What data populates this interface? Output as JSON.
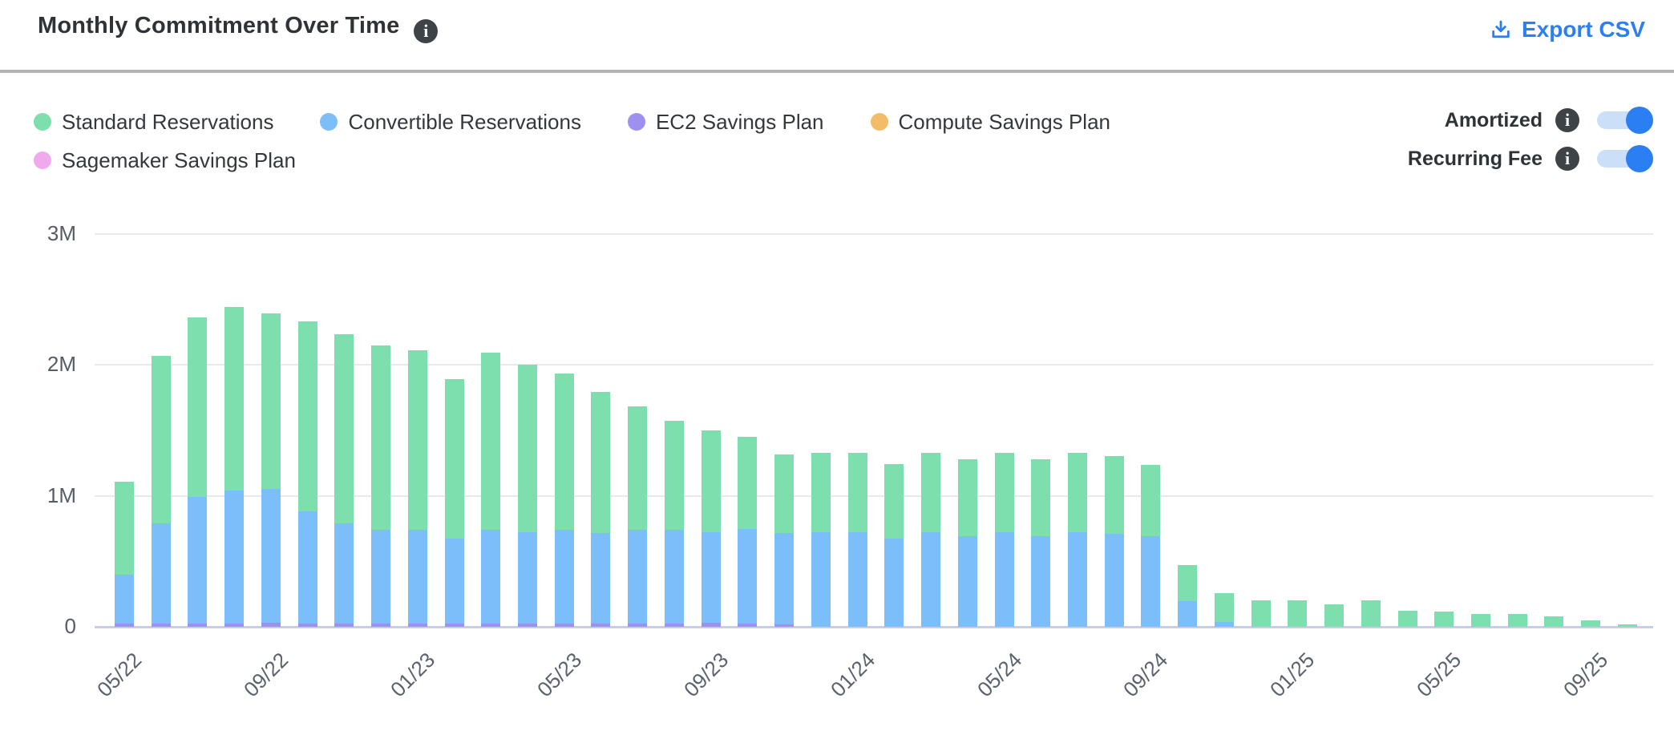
{
  "header": {
    "title": "Monthly Commitment Over Time",
    "title_info_icon": "info-icon",
    "export_label": "Export CSV"
  },
  "toggles": [
    {
      "label": "Amortized",
      "state": "on"
    },
    {
      "label": "Recurring Fee",
      "state": "on"
    }
  ],
  "colors": {
    "accent_blue": "#2b7ff2",
    "toggle_track": "#cbdff9",
    "info_badge_bg": "#3e4347",
    "divider": "#b3b3b3",
    "grid": "#e9e9ec",
    "axis_line": "#c8cee9",
    "axis_text": "#565d66",
    "standard": "#7cdfad",
    "convertible": "#7cbef9",
    "ec2": "#9d90ee",
    "compute": "#f5bc67",
    "sagemaker": "#f0a9ec"
  },
  "chart_data": {
    "type": "bar",
    "stacked": true,
    "title": "Monthly Commitment Over Time",
    "xlabel": "",
    "ylabel": "",
    "ylim": [
      0,
      3000000
    ],
    "ytick_labels": [
      "0",
      "1M",
      "2M",
      "3M"
    ],
    "ytick_values": [
      0,
      1000000,
      2000000,
      3000000
    ],
    "grid": "horizontal",
    "legend_position": "top-left",
    "x_tick_labels_shown": [
      "05/22",
      "09/22",
      "01/23",
      "05/23",
      "09/23",
      "01/24",
      "05/24",
      "09/24",
      "01/25",
      "05/25",
      "09/25"
    ],
    "x_tick_every": 4,
    "categories": [
      "05/22",
      "06/22",
      "07/22",
      "08/22",
      "09/22",
      "10/22",
      "11/22",
      "12/22",
      "01/23",
      "02/23",
      "03/23",
      "04/23",
      "05/23",
      "06/23",
      "07/23",
      "08/23",
      "09/23",
      "10/23",
      "11/23",
      "12/23",
      "01/24",
      "02/24",
      "03/24",
      "04/24",
      "05/24",
      "06/24",
      "07/24",
      "08/24",
      "09/24",
      "10/24",
      "11/24",
      "12/24",
      "01/25",
      "02/25",
      "03/25",
      "04/25",
      "05/25",
      "06/25",
      "07/25",
      "08/25",
      "09/25",
      "10/25"
    ],
    "value_unit": "M",
    "stack_order_bottom_to_top": [
      "EC2 Savings Plan",
      "Convertible Reservations",
      "Standard Reservations",
      "Compute Savings Plan",
      "Sagemaker Savings Plan"
    ],
    "series": [
      {
        "name": "Standard Reservations",
        "color": "#7cdfad",
        "values": [
          0.71,
          1.28,
          1.37,
          1.4,
          1.34,
          1.45,
          1.44,
          1.41,
          1.37,
          1.22,
          1.35,
          1.28,
          1.19,
          1.075,
          0.945,
          0.83,
          0.78,
          0.705,
          0.6,
          0.605,
          0.605,
          0.57,
          0.605,
          0.59,
          0.605,
          0.59,
          0.605,
          0.59,
          0.545,
          0.275,
          0.225,
          0.2,
          0.2,
          0.17,
          0.2,
          0.125,
          0.115,
          0.1,
          0.1,
          0.078,
          0.05,
          0.02
        ]
      },
      {
        "name": "Convertible Reservations",
        "color": "#7cbef9",
        "values": [
          0.375,
          0.765,
          0.965,
          1.015,
          1.02,
          0.855,
          0.765,
          0.715,
          0.715,
          0.645,
          0.715,
          0.695,
          0.715,
          0.69,
          0.715,
          0.715,
          0.69,
          0.72,
          0.695,
          0.72,
          0.72,
          0.67,
          0.72,
          0.69,
          0.72,
          0.69,
          0.72,
          0.71,
          0.69,
          0.195,
          0.035,
          0,
          0,
          0,
          0,
          0,
          0,
          0,
          0,
          0,
          0,
          0
        ]
      },
      {
        "name": "EC2 Savings Plan",
        "color": "#9d90ee",
        "values": [
          0.025,
          0.025,
          0.025,
          0.025,
          0.03,
          0.025,
          0.025,
          0.025,
          0.025,
          0.025,
          0.025,
          0.025,
          0.025,
          0.025,
          0.025,
          0.025,
          0.03,
          0.025,
          0.02,
          0,
          0,
          0,
          0,
          0,
          0,
          0,
          0,
          0,
          0,
          0,
          0,
          0,
          0,
          0,
          0,
          0,
          0,
          0,
          0,
          0,
          0,
          0
        ]
      },
      {
        "name": "Compute Savings Plan",
        "color": "#f5bc67",
        "values": [
          0,
          0,
          0,
          0,
          0,
          0,
          0,
          0,
          0,
          0,
          0,
          0,
          0,
          0,
          0,
          0,
          0,
          0,
          0,
          0,
          0,
          0,
          0,
          0,
          0,
          0,
          0,
          0,
          0,
          0,
          0,
          0,
          0,
          0,
          0,
          0,
          0,
          0,
          0,
          0,
          0,
          0
        ]
      },
      {
        "name": "Sagemaker Savings Plan",
        "color": "#f0a9ec",
        "values": [
          0,
          0,
          0,
          0,
          0,
          0,
          0,
          0,
          0,
          0,
          0,
          0,
          0,
          0,
          0,
          0,
          0,
          0,
          0,
          0,
          0,
          0,
          0,
          0,
          0,
          0,
          0,
          0,
          0,
          0,
          0,
          0,
          0,
          0,
          0,
          0,
          0,
          0,
          0,
          0,
          0,
          0
        ]
      }
    ]
  }
}
